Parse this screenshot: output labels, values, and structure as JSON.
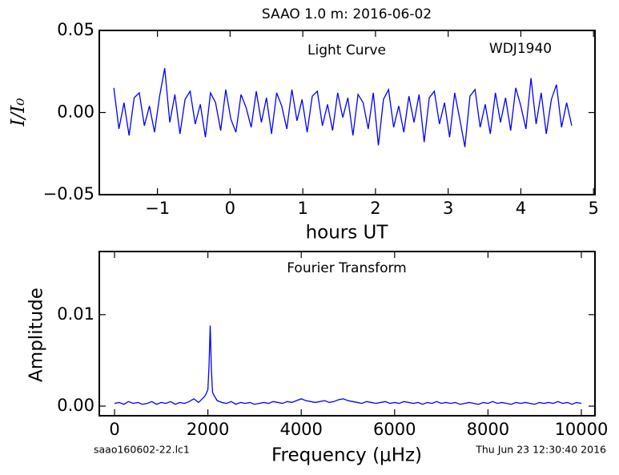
{
  "chart_data": [
    {
      "type": "line",
      "title": "SAAO 1.0 m:  2016-06-02",
      "annotations": [
        "Light Curve",
        "WDJ1940"
      ],
      "xlabel": "hours UT",
      "ylabel": "I/I₀",
      "color": "#0000ff",
      "xlim": [
        -1.8,
        5.02
      ],
      "ylim": [
        -0.05,
        0.05
      ],
      "xticks": [
        {
          "value": -1,
          "label": "−1"
        },
        0,
        1,
        2,
        3,
        4,
        5
      ],
      "yticks": [
        {
          "value": -0.05,
          "label": "−0.05"
        },
        {
          "value": 0,
          "label": "0.00"
        },
        0.05
      ],
      "x": [
        -1.6,
        -1.53,
        -1.46,
        -1.39,
        -1.32,
        -1.25,
        -1.18,
        -1.11,
        -1.04,
        -0.97,
        -0.9,
        -0.83,
        -0.76,
        -0.69,
        -0.62,
        -0.55,
        -0.48,
        -0.41,
        -0.34,
        -0.27,
        -0.2,
        -0.13,
        -0.06,
        0.01,
        0.08,
        0.15,
        0.22,
        0.29,
        0.36,
        0.43,
        0.5,
        0.57,
        0.64,
        0.71,
        0.78,
        0.85,
        0.92,
        0.99,
        1.06,
        1.13,
        1.2,
        1.27,
        1.34,
        1.41,
        1.48,
        1.55,
        1.62,
        1.69,
        1.76,
        1.83,
        1.9,
        1.97,
        2.04,
        2.11,
        2.18,
        2.25,
        2.32,
        2.39,
        2.46,
        2.53,
        2.6,
        2.67,
        2.74,
        2.81,
        2.88,
        2.95,
        3.02,
        3.09,
        3.16,
        3.23,
        3.3,
        3.37,
        3.44,
        3.51,
        3.58,
        3.65,
        3.72,
        3.79,
        3.86,
        3.93,
        4.0,
        4.07,
        4.14,
        4.21,
        4.28,
        4.35,
        4.42,
        4.49,
        4.56,
        4.63,
        4.7
      ],
      "values": [
        0.015,
        -0.01,
        0.006,
        -0.014,
        0.009,
        0.012,
        -0.008,
        0.004,
        -0.012,
        0.01,
        0.027,
        -0.006,
        0.011,
        -0.013,
        0.008,
        0.013,
        -0.007,
        0.005,
        -0.015,
        0.012,
        0.006,
        -0.011,
        0.014,
        -0.004,
        -0.012,
        0.011,
        0.003,
        -0.009,
        0.013,
        -0.006,
        0.009,
        -0.013,
        0.012,
        0.004,
        -0.01,
        0.014,
        -0.005,
        0.008,
        -0.012,
        0.01,
        0.013,
        -0.008,
        0.005,
        -0.011,
        0.012,
        -0.003,
        0.009,
        -0.014,
        0.011,
        0.006,
        -0.01,
        0.012,
        -0.02,
        0.008,
        0.014,
        -0.009,
        0.004,
        -0.012,
        0.01,
        -0.006,
        0.011,
        -0.018,
        0.009,
        0.013,
        -0.007,
        0.006,
        -0.015,
        0.012,
        -0.004,
        -0.021,
        0.01,
        0.014,
        -0.009,
        0.005,
        -0.013,
        0.012,
        -0.006,
        0.009,
        -0.011,
        0.015,
        0.004,
        -0.01,
        0.021,
        -0.007,
        0.012,
        -0.013,
        0.008,
        0.017,
        -0.009,
        0.006,
        -0.008
      ]
    },
    {
      "type": "line",
      "annotations": [
        "Fourier Transform",
        "saao160602-22.lc1",
        "Thu Jun 23 12:30:40 2016"
      ],
      "xlabel": "Frequency (μHz)",
      "ylabel": "Amplitude",
      "color": "#0000ff",
      "xlim": [
        -326,
        10292
      ],
      "ylim": [
        -0.00105,
        0.0169
      ],
      "xticks": [
        0,
        2000,
        4000,
        6000,
        8000,
        10000
      ],
      "yticks": [
        {
          "value": 0,
          "label": "0.00"
        },
        0.01
      ],
      "x": [
        0,
        100,
        200,
        300,
        400,
        500,
        600,
        700,
        800,
        900,
        1000,
        1100,
        1200,
        1300,
        1400,
        1500,
        1600,
        1700,
        1800,
        1900,
        1950,
        2000,
        2025,
        2050,
        2075,
        2100,
        2150,
        2200,
        2300,
        2400,
        2500,
        2600,
        2700,
        2800,
        2900,
        3000,
        3100,
        3200,
        3300,
        3400,
        3500,
        3600,
        3700,
        3800,
        3900,
        4000,
        4100,
        4200,
        4300,
        4400,
        4500,
        4600,
        4700,
        4800,
        4900,
        5000,
        5100,
        5200,
        5300,
        5400,
        5500,
        5600,
        5700,
        5800,
        5900,
        6000,
        6100,
        6200,
        6300,
        6400,
        6500,
        6600,
        6700,
        6800,
        6900,
        7000,
        7100,
        7200,
        7300,
        7400,
        7500,
        7600,
        7700,
        7800,
        7900,
        8000,
        8100,
        8200,
        8300,
        8400,
        8500,
        8600,
        8700,
        8800,
        8900,
        9000,
        9100,
        9200,
        9300,
        9400,
        9500,
        9600,
        9700,
        9800,
        9900,
        10000
      ],
      "values": [
        0.0003,
        0.0004,
        0.0002,
        0.0005,
        0.0003,
        0.0004,
        0.0002,
        0.0003,
        0.0005,
        0.0002,
        0.0004,
        0.0003,
        0.0005,
        0.0002,
        0.0004,
        0.0003,
        0.0005,
        0.0008,
        0.0004,
        0.0009,
        0.0012,
        0.0018,
        0.0045,
        0.0088,
        0.004,
        0.0015,
        0.001,
        0.0006,
        0.0004,
        0.0003,
        0.0005,
        0.0002,
        0.0004,
        0.0003,
        0.0004,
        0.0002,
        0.0003,
        0.0004,
        0.0003,
        0.0005,
        0.0004,
        0.0003,
        0.0005,
        0.0004,
        0.0006,
        0.0008,
        0.0006,
        0.0005,
        0.0004,
        0.0005,
        0.0006,
        0.0004,
        0.0005,
        0.0007,
        0.0008,
        0.0006,
        0.0005,
        0.0004,
        0.0003,
        0.0005,
        0.0004,
        0.0003,
        0.0004,
        0.0005,
        0.0003,
        0.0004,
        0.0003,
        0.0005,
        0.0004,
        0.0003,
        0.0004,
        0.0002,
        0.0004,
        0.0003,
        0.0005,
        0.0003,
        0.0004,
        0.0003,
        0.0004,
        0.0002,
        0.0003,
        0.0004,
        0.0003,
        0.0002,
        0.0004,
        0.0003,
        0.0005,
        0.0003,
        0.0004,
        0.0003,
        0.0002,
        0.0004,
        0.0003,
        0.0004,
        0.0003,
        0.0002,
        0.0004,
        0.0003,
        0.0004,
        0.0003,
        0.0005,
        0.0003,
        0.0004,
        0.0002,
        0.0004,
        0.0003
      ]
    }
  ]
}
